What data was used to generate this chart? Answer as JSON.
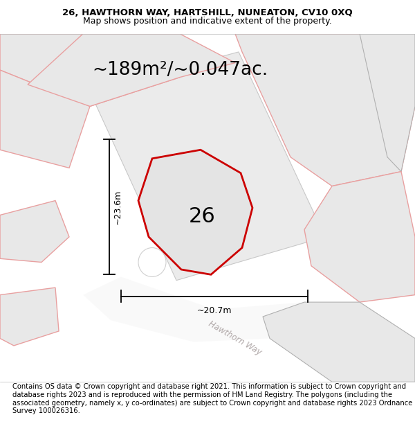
{
  "title_line1": "26, HAWTHORN WAY, HARTSHILL, NUNEATON, CV10 0XQ",
  "title_line2": "Map shows position and indicative extent of the property.",
  "area_text": "~189m²/~0.047ac.",
  "label_number": "26",
  "dim_vertical": "~23.6m",
  "dim_horizontal": "~20.7m",
  "street_label": "Hawthorn Way",
  "footer_text": "Contains OS data © Crown copyright and database right 2021. This information is subject to Crown copyright and database rights 2023 and is reproduced with the permission of HM Land Registry. The polygons (including the associated geometry, namely x, y co-ordinates) are subject to Crown copyright and database rights 2023 Ordnance Survey 100026316.",
  "plot_edge": "#cc0000",
  "neighbor_fill": "#e8e8e8",
  "neighbor_edge": "#e8a0a0",
  "neighbor_edge2": "#b0b0b0",
  "title_fontsize": 9.5,
  "footer_fontsize": 7.2,
  "area_fontsize": 19,
  "label_fontsize": 22,
  "dim_fontsize": 9
}
